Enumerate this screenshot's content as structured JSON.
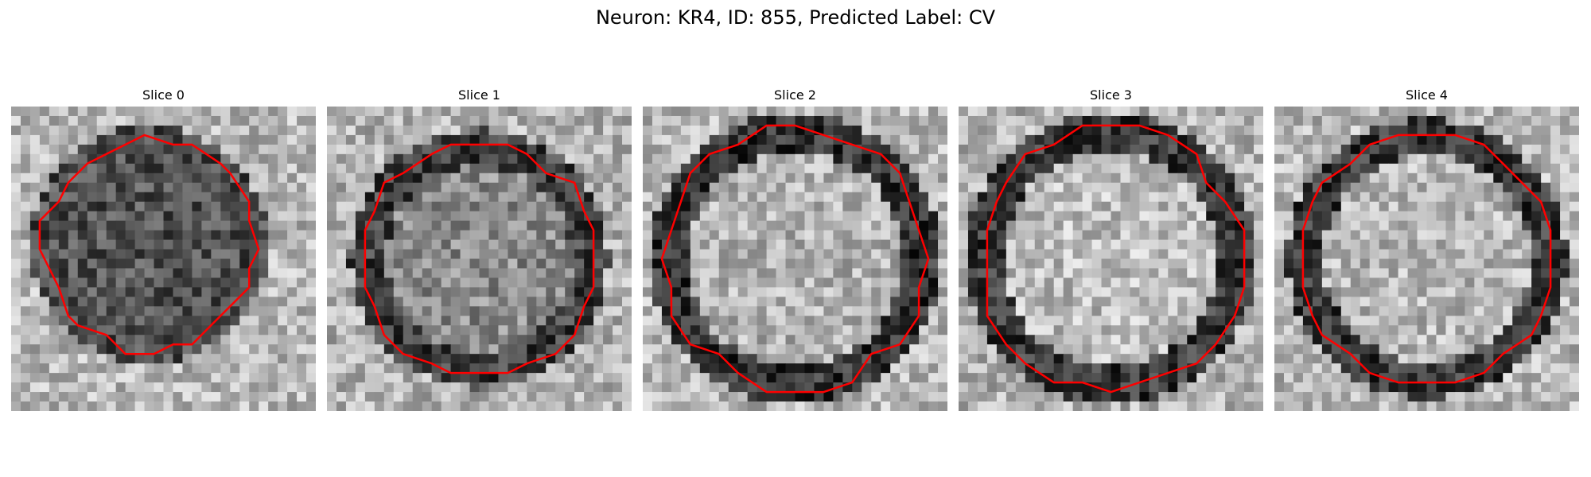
{
  "figure": {
    "title": "Neuron: KR4, ID: 855, Predicted Label: CV"
  },
  "contour_color": "#ff0000",
  "panels": [
    {
      "title": "Slice 0",
      "seed": 11,
      "ring_radius": 0.4,
      "center_brightness": 0.32,
      "ring_darkness": 0.3,
      "bg": 0.72
    },
    {
      "title": "Slice 1",
      "seed": 23,
      "ring_radius": 0.44,
      "center_brightness": 0.55,
      "ring_darkness": 0.25,
      "bg": 0.7
    },
    {
      "title": "Slice 2",
      "seed": 37,
      "ring_radius": 0.5,
      "center_brightness": 0.7,
      "ring_darkness": 0.2,
      "bg": 0.72
    },
    {
      "title": "Slice 3",
      "seed": 41,
      "ring_radius": 0.5,
      "center_brightness": 0.74,
      "ring_darkness": 0.22,
      "bg": 0.7
    },
    {
      "title": "Slice 4",
      "seed": 53,
      "ring_radius": 0.48,
      "center_brightness": 0.72,
      "ring_darkness": 0.22,
      "bg": 0.72
    }
  ]
}
